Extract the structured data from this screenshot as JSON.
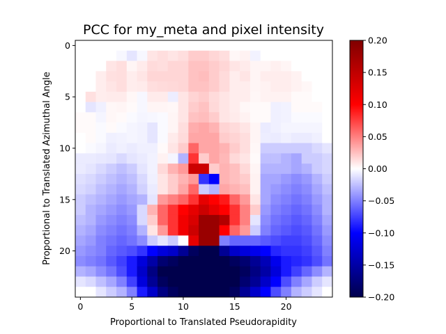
{
  "chart_data": {
    "type": "heatmap",
    "title": "PCC for my_meta and pixel intensity",
    "xlabel": "Proportional to Translated Pseudorapidity",
    "ylabel": "Proportional to Translated Azimuthal Angle",
    "x_ticks": [
      "0",
      "5",
      "10",
      "15",
      "20"
    ],
    "y_ticks": [
      "0",
      "5",
      "10",
      "15",
      "20"
    ],
    "colorbar_ticks": [
      "0.20",
      "0.15",
      "0.10",
      "0.05",
      "0.00",
      "−0.05",
      "−0.10",
      "−0.15",
      "−0.20"
    ],
    "colormap": "seismic",
    "vmin": -0.2,
    "vmax": 0.2,
    "rows": 25,
    "cols": 25,
    "grid": false,
    "values": [
      [
        0,
        0,
        0,
        0,
        0,
        0,
        0,
        0,
        0,
        0,
        0,
        0,
        0,
        0,
        0,
        0,
        0,
        0,
        0,
        0,
        0,
        0,
        0,
        0,
        0
      ],
      [
        0,
        0,
        0,
        0,
        -0.003,
        -0.01,
        -0.003,
        0.01,
        0.013,
        0.01,
        0.013,
        0.02,
        0.02,
        0.016,
        0.013,
        0.003,
        0.005,
        -0.005,
        0,
        0,
        0,
        0,
        0,
        0,
        0
      ],
      [
        0,
        0,
        0,
        0.01,
        0.013,
        0.004,
        0.008,
        0.014,
        0.013,
        0.016,
        0.016,
        0.024,
        0.024,
        0.02,
        0.016,
        0.01,
        0.008,
        0.004,
        0.004,
        0.006,
        0.004,
        0,
        0,
        0,
        0
      ],
      [
        0,
        0,
        0.007,
        0.012,
        0.013,
        0.007,
        0.01,
        0.016,
        0.016,
        0.016,
        0.016,
        0.024,
        0.026,
        0.02,
        0.014,
        0.007,
        0.01,
        0.004,
        0.007,
        0.007,
        0.007,
        0.005,
        0,
        0,
        0
      ],
      [
        0,
        0,
        0.007,
        0.01,
        0.013,
        0.007,
        0.008,
        0.013,
        0.014,
        0.015,
        0.016,
        0.024,
        0.024,
        0.02,
        0.014,
        0.007,
        0.007,
        0.004,
        0.005,
        0.007,
        0.007,
        0.005,
        0.003,
        0,
        0
      ],
      [
        0,
        0.012,
        0.007,
        0.008,
        0.008,
        0.003,
        -0.003,
        0.008,
        0.008,
        -0.007,
        0.01,
        0.017,
        0.02,
        0.014,
        0.01,
        0.007,
        0.007,
        0.003,
        0.005,
        0.005,
        0.005,
        0.002,
        0.002,
        0,
        0
      ],
      [
        0,
        -0.01,
        -0.006,
        0.003,
        0.004,
        0.002,
        -0.003,
        0.004,
        0.004,
        0.003,
        0.01,
        0.02,
        0.024,
        0.015,
        0.01,
        0.007,
        0.003,
        0.002,
        0.002,
        -0.006,
        -0.005,
        0.002,
        0.002,
        0.002,
        0
      ],
      [
        0.002,
        0.002,
        -0.004,
        0.003,
        0.002,
        -0.002,
        -0.004,
        -0.003,
        -0.002,
        0.004,
        0.01,
        0.024,
        0.026,
        0.02,
        0.01,
        0.008,
        0.005,
        0.002,
        0.002,
        -0.006,
        -0.005,
        -0.002,
        -0.002,
        -0.002,
        0
      ],
      [
        0.002,
        0.002,
        -0.002,
        0.002,
        -0.002,
        -0.004,
        -0.005,
        -0.01,
        -0.002,
        0.004,
        0.013,
        0.032,
        0.035,
        0.03,
        0.017,
        0.014,
        0.01,
        0.004,
        -0.008,
        -0.006,
        -0.004,
        -0.004,
        -0.004,
        -0.004,
        0
      ],
      [
        0,
        0.002,
        -0.002,
        -0.006,
        -0.005,
        -0.004,
        -0.005,
        -0.01,
        -0.002,
        0.008,
        0.014,
        0.035,
        0.035,
        0.035,
        0.02,
        0.017,
        0.013,
        0.004,
        -0.007,
        -0.008,
        -0.006,
        -0.008,
        -0.008,
        -0.006,
        0
      ],
      [
        0,
        -0.002,
        -0.004,
        -0.008,
        -0.006,
        -0.008,
        -0.006,
        -0.006,
        0.002,
        0.01,
        0.02,
        0.06,
        0.035,
        0.035,
        0.03,
        0.02,
        0.013,
        0.003,
        -0.02,
        -0.02,
        -0.02,
        -0.02,
        -0.02,
        -0.015,
        -0.01
      ],
      [
        -0.008,
        -0.008,
        -0.009,
        -0.01,
        -0.015,
        -0.01,
        -0.008,
        -0.005,
        0.005,
        -0.004,
        -0.03,
        0.08,
        0.02,
        0.035,
        0.028,
        0.015,
        0.01,
        0.002,
        -0.025,
        -0.025,
        -0.03,
        -0.035,
        -0.02,
        -0.02,
        -0.016
      ],
      [
        -0.008,
        -0.01,
        -0.015,
        -0.02,
        -0.025,
        -0.02,
        -0.01,
        -0.005,
        0.015,
        0.03,
        0.04,
        0.14,
        0.14,
        0.02,
        0.03,
        0.025,
        0.015,
        0.004,
        -0.03,
        -0.03,
        -0.03,
        -0.035,
        -0.03,
        -0.02,
        -0.016
      ],
      [
        -0.012,
        -0.015,
        -0.02,
        -0.025,
        -0.03,
        -0.025,
        -0.015,
        -0.006,
        0.01,
        0.02,
        0.03,
        0.04,
        -0.08,
        -0.1,
        0.03,
        0.025,
        0.02,
        0.005,
        -0.035,
        -0.035,
        -0.04,
        -0.045,
        -0.04,
        -0.03,
        -0.02
      ],
      [
        -0.015,
        -0.018,
        -0.025,
        -0.03,
        -0.035,
        -0.03,
        -0.018,
        -0.008,
        0.01,
        0.02,
        0.035,
        0.06,
        -0.02,
        -0.03,
        0.035,
        0.03,
        0.025,
        0.005,
        -0.035,
        -0.04,
        -0.045,
        -0.05,
        -0.045,
        -0.035,
        -0.025
      ],
      [
        -0.02,
        -0.025,
        -0.03,
        -0.035,
        -0.04,
        -0.035,
        -0.03,
        -0.01,
        0.04,
        0.05,
        0.06,
        0.08,
        0.12,
        0.1,
        0.09,
        0.06,
        0.04,
        0.01,
        -0.035,
        -0.045,
        -0.05,
        -0.055,
        -0.05,
        -0.04,
        -0.03
      ],
      [
        -0.02,
        -0.03,
        -0.035,
        -0.04,
        -0.045,
        -0.04,
        -0.015,
        0.03,
        0.06,
        0.08,
        0.1,
        0.12,
        0.14,
        0.12,
        0.1,
        0.08,
        0.05,
        0.02,
        -0.04,
        -0.05,
        -0.055,
        -0.06,
        -0.055,
        -0.045,
        -0.03
      ],
      [
        -0.025,
        -0.03,
        -0.04,
        -0.045,
        -0.05,
        -0.045,
        -0.015,
        0.02,
        0.06,
        0.08,
        0.11,
        0.13,
        0.18,
        0.18,
        0.16,
        0.08,
        0.05,
        -0.01,
        -0.045,
        -0.055,
        -0.06,
        -0.065,
        -0.06,
        -0.05,
        -0.035
      ],
      [
        -0.03,
        -0.035,
        -0.045,
        -0.05,
        -0.055,
        -0.05,
        -0.03,
        0.01,
        0.04,
        0.08,
        0.11,
        0.14,
        0.18,
        0.18,
        0.1,
        0.06,
        0.04,
        -0.02,
        -0.05,
        -0.06,
        -0.065,
        -0.07,
        -0.065,
        -0.055,
        -0.04
      ],
      [
        -0.035,
        -0.04,
        -0.05,
        -0.055,
        -0.06,
        -0.055,
        -0.045,
        -0.02,
        -0.01,
        -0.02,
        0,
        0.12,
        0.18,
        0.18,
        -0.05,
        -0.06,
        -0.06,
        -0.06,
        -0.065,
        -0.07,
        -0.075,
        -0.075,
        -0.07,
        -0.06,
        -0.045
      ],
      [
        -0.04,
        -0.045,
        -0.05,
        -0.06,
        -0.065,
        -0.07,
        -0.08,
        -0.1,
        -0.12,
        -0.13,
        -0.16,
        -0.19,
        -0.2,
        -0.2,
        -0.16,
        -0.13,
        -0.12,
        -0.11,
        -0.1,
        -0.085,
        -0.08,
        -0.08,
        -0.075,
        -0.065,
        -0.05
      ],
      [
        -0.045,
        -0.05,
        -0.055,
        -0.065,
        -0.075,
        -0.09,
        -0.12,
        -0.15,
        -0.18,
        -0.19,
        -0.2,
        -0.2,
        -0.2,
        -0.2,
        -0.2,
        -0.19,
        -0.18,
        -0.16,
        -0.14,
        -0.11,
        -0.09,
        -0.085,
        -0.08,
        -0.07,
        -0.055
      ],
      [
        -0.03,
        -0.035,
        -0.045,
        -0.055,
        -0.07,
        -0.09,
        -0.13,
        -0.17,
        -0.2,
        -0.2,
        -0.2,
        -0.2,
        -0.2,
        -0.2,
        -0.2,
        -0.2,
        -0.19,
        -0.17,
        -0.15,
        -0.12,
        -0.09,
        -0.075,
        -0.06,
        -0.045,
        -0.03
      ],
      [
        -0.01,
        -0.015,
        -0.025,
        -0.035,
        -0.05,
        -0.075,
        -0.12,
        -0.16,
        -0.19,
        -0.2,
        -0.2,
        -0.2,
        -0.2,
        -0.2,
        -0.2,
        -0.2,
        -0.18,
        -0.16,
        -0.13,
        -0.1,
        -0.07,
        -0.05,
        -0.035,
        -0.02,
        -0.01
      ],
      [
        0,
        0,
        -0.01,
        -0.02,
        -0.03,
        -0.05,
        -0.09,
        -0.13,
        -0.17,
        -0.19,
        -0.2,
        -0.2,
        -0.2,
        -0.2,
        -0.2,
        -0.19,
        -0.16,
        -0.13,
        -0.1,
        -0.07,
        -0.05,
        -0.03,
        -0.02,
        -0.01,
        0
      ]
    ]
  }
}
